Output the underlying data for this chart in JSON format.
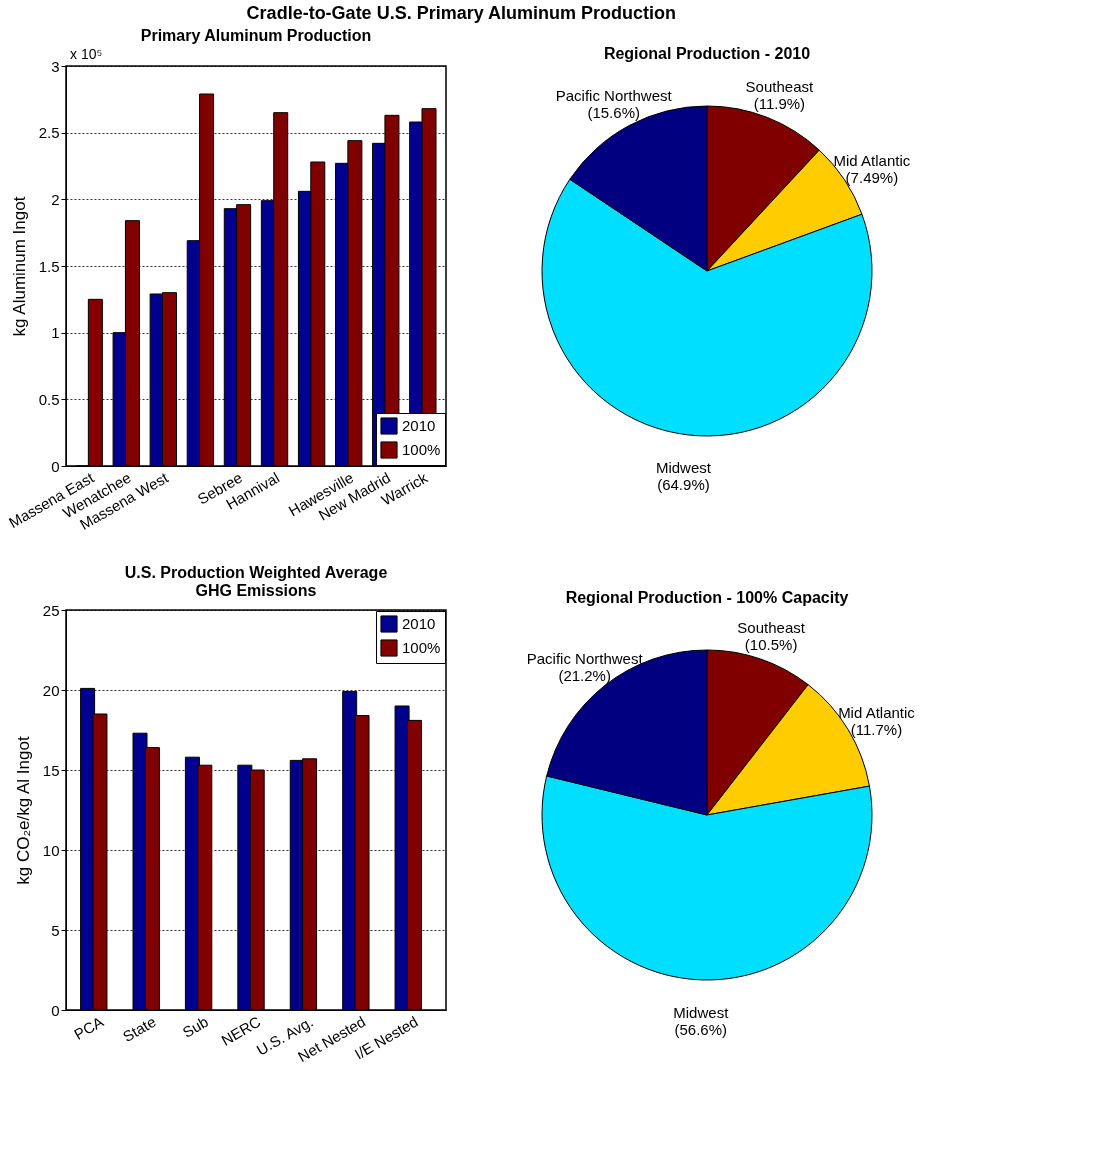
{
  "chart_data": [
    {
      "type": "bar",
      "title": "Primary Aluminum Production",
      "ylabel": "kg Aluminum Ingot",
      "annotations": [
        "Cradle-to-Gate U.S. Primary Aluminum Production",
        "x 10⁵"
      ],
      "categories": [
        "Massena East",
        "Wenatchee",
        "Massena West",
        null,
        "Sebree",
        "Hannival",
        null,
        "Hawesville",
        "New Madrid",
        "Warrick"
      ],
      "series": [
        {
          "name": "2010",
          "color": "#00008f",
          "values": [
            0,
            1.0,
            1.29,
            1.69,
            1.93,
            1.99,
            2.06,
            2.27,
            2.42,
            2.58
          ]
        },
        {
          "name": "100%",
          "color": "#800000",
          "values": [
            1.25,
            1.84,
            1.3,
            2.79,
            1.96,
            2.65,
            2.28,
            2.44,
            2.63,
            2.68
          ]
        }
      ],
      "ylim": [
        0,
        3
      ],
      "yticks": [
        0,
        0.5,
        1,
        1.5,
        2,
        2.5,
        3
      ],
      "grid": "y",
      "legend": "bottom right"
    },
    {
      "type": "pie",
      "title": "Regional Production - 2010",
      "categories": [
        "Southeast",
        "Mid Atlantic",
        "Midwest",
        "Pacific Northwest"
      ],
      "values": [
        11.9,
        7.49,
        64.9,
        15.6
      ],
      "value_labels": [
        "(11.9%)",
        "(7.49%)",
        "(64.9%)",
        "(15.6%)"
      ],
      "colors": [
        "#800000",
        "#ffcc00",
        "#00dfff",
        "#000080"
      ]
    },
    {
      "type": "bar",
      "title": "U.S. Production Weighted Average\nGHG Emissions",
      "ylabel": "kg CO₂e/kg Al Ingot",
      "categories": [
        "PCA",
        "State",
        "Sub",
        "NERC",
        "U.S. Avg.",
        "Net Nested",
        "I/E Nested"
      ],
      "series": [
        {
          "name": "2010",
          "color": "#00008f",
          "values": [
            20.1,
            17.3,
            15.8,
            15.3,
            15.6,
            19.9,
            19.0
          ]
        },
        {
          "name": "100%",
          "color": "#800000",
          "values": [
            18.5,
            16.4,
            15.3,
            15.0,
            15.7,
            18.4,
            18.1
          ]
        }
      ],
      "ylim": [
        0,
        25
      ],
      "yticks": [
        0,
        5,
        10,
        15,
        20,
        25
      ],
      "grid": "y",
      "legend": "top right"
    },
    {
      "type": "pie",
      "title": "Regional Production - 100% Capacity",
      "categories": [
        "Southeast",
        "Mid Atlantic",
        "Midwest",
        "Pacific Northwest"
      ],
      "values": [
        10.5,
        11.7,
        56.6,
        21.2
      ],
      "value_labels": [
        "(10.5%)",
        "(11.7%)",
        "(56.6%)",
        "(21.2%)"
      ],
      "colors": [
        "#800000",
        "#ffcc00",
        "#00dfff",
        "#000080"
      ]
    }
  ]
}
